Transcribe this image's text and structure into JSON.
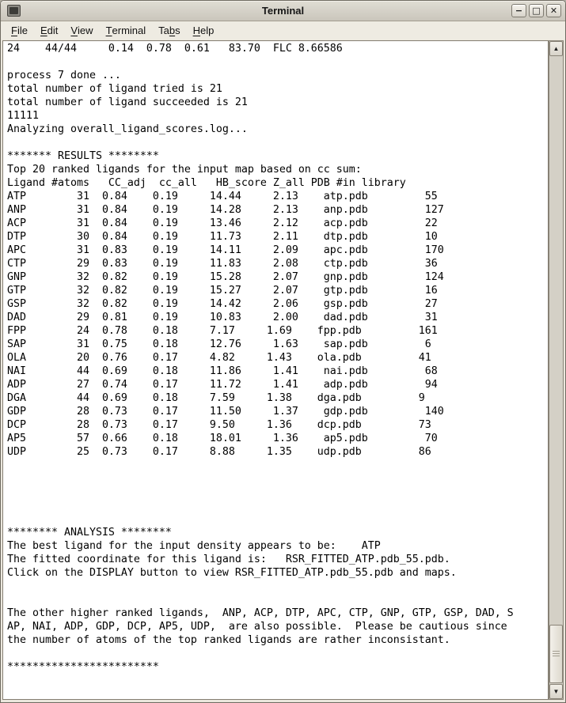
{
  "window": {
    "title": "Terminal"
  },
  "icons": {
    "minimize": "−",
    "maximize": "□",
    "close": "✕",
    "scroll_up": "▲",
    "scroll_down": "▼"
  },
  "menu": {
    "items": [
      {
        "label": "File",
        "mnemonic_index": 0
      },
      {
        "label": "Edit",
        "mnemonic_index": 0
      },
      {
        "label": "View",
        "mnemonic_index": 0
      },
      {
        "label": "Terminal",
        "mnemonic_index": 0
      },
      {
        "label": "Tabs",
        "mnemonic_index": 2
      },
      {
        "label": "Help",
        "mnemonic_index": 0
      }
    ]
  },
  "terminal": {
    "lines": [
      "24    44/44     0.14  0.78  0.61   83.70  FLC 8.66586",
      "",
      "process 7 done ...",
      "total number of ligand tried is 21",
      "total number of ligand succeeded is 21",
      "11111",
      "Analyzing overall_ligand_scores.log...",
      "",
      "******* RESULTS ********",
      "Top 20 ranked ligands for the input map based on cc sum:",
      "Ligand #atoms   CC_adj  cc_all   HB_score Z_all PDB #in library",
      "ATP        31  0.84    0.19     14.44     2.13    atp.pdb         55",
      "ANP        31  0.84    0.19     14.28     2.13    anp.pdb         127",
      "ACP        31  0.84    0.19     13.46     2.12    acp.pdb         22",
      "DTP        30  0.84    0.19     11.73     2.11    dtp.pdb         10",
      "APC        31  0.83    0.19     14.11     2.09    apc.pdb         170",
      "CTP        29  0.83    0.19     11.83     2.08    ctp.pdb         36",
      "GNP        32  0.82    0.19     15.28     2.07    gnp.pdb         124",
      "GTP        32  0.82    0.19     15.27     2.07    gtp.pdb         16",
      "GSP        32  0.82    0.19     14.42     2.06    gsp.pdb         27",
      "DAD        29  0.81    0.19     10.83     2.00    dad.pdb         31",
      "FPP        24  0.78    0.18     7.17     1.69    fpp.pdb         161",
      "SAP        31  0.75    0.18     12.76     1.63    sap.pdb         6",
      "OLA        20  0.76    0.17     4.82     1.43    ola.pdb         41",
      "NAI        44  0.69    0.18     11.86     1.41    nai.pdb         68",
      "ADP        27  0.74    0.17     11.72     1.41    adp.pdb         94",
      "DGA        44  0.69    0.18     7.59     1.38    dga.pdb         9",
      "GDP        28  0.73    0.17     11.50     1.37    gdp.pdb         140",
      "DCP        28  0.73    0.17     9.50     1.36    dcp.pdb         73",
      "AP5        57  0.66    0.18     18.01     1.36    ap5.pdb         70",
      "UDP        25  0.73    0.17     8.88     1.35    udp.pdb         86",
      "",
      "",
      "",
      "",
      "",
      "******** ANALYSIS ********",
      "The best ligand for the input density appears to be:    ATP",
      "The fitted coordinate for this ligand is:   RSR_FITTED_ATP.pdb_55.pdb.",
      "Click on the DISPLAY button to view RSR_FITTED_ATP.pdb_55.pdb and maps.",
      "",
      "",
      "The other higher ranked ligands,  ANP, ACP, DTP, APC, CTP, GNP, GTP, GSP, DAD, S",
      "AP, NAI, ADP, GDP, DCP, AP5, UDP,  are also possible.  Please be cautious since",
      "the number of atoms of the top ranked ligands are rather inconsistant.",
      "",
      "************************"
    ]
  },
  "results_table": {
    "title": "Top 20 ranked ligands for the input map based on cc sum:",
    "columns": [
      "Ligand",
      "#atoms",
      "CC_adj",
      "cc_all",
      "HB_score",
      "Z_all",
      "PDB",
      "#in library"
    ],
    "rows": [
      [
        "ATP",
        31,
        0.84,
        0.19,
        14.44,
        2.13,
        "atp.pdb",
        55
      ],
      [
        "ANP",
        31,
        0.84,
        0.19,
        14.28,
        2.13,
        "anp.pdb",
        127
      ],
      [
        "ACP",
        31,
        0.84,
        0.19,
        13.46,
        2.12,
        "acp.pdb",
        22
      ],
      [
        "DTP",
        30,
        0.84,
        0.19,
        11.73,
        2.11,
        "dtp.pdb",
        10
      ],
      [
        "APC",
        31,
        0.83,
        0.19,
        14.11,
        2.09,
        "apc.pdb",
        170
      ],
      [
        "CTP",
        29,
        0.83,
        0.19,
        11.83,
        2.08,
        "ctp.pdb",
        36
      ],
      [
        "GNP",
        32,
        0.82,
        0.19,
        15.28,
        2.07,
        "gnp.pdb",
        124
      ],
      [
        "GTP",
        32,
        0.82,
        0.19,
        15.27,
        2.07,
        "gtp.pdb",
        16
      ],
      [
        "GSP",
        32,
        0.82,
        0.19,
        14.42,
        2.06,
        "gsp.pdb",
        27
      ],
      [
        "DAD",
        29,
        0.81,
        0.19,
        10.83,
        2.0,
        "dad.pdb",
        31
      ],
      [
        "FPP",
        24,
        0.78,
        0.18,
        7.17,
        1.69,
        "fpp.pdb",
        161
      ],
      [
        "SAP",
        31,
        0.75,
        0.18,
        12.76,
        1.63,
        "sap.pdb",
        6
      ],
      [
        "OLA",
        20,
        0.76,
        0.17,
        4.82,
        1.43,
        "ola.pdb",
        41
      ],
      [
        "NAI",
        44,
        0.69,
        0.18,
        11.86,
        1.41,
        "nai.pdb",
        68
      ],
      [
        "ADP",
        27,
        0.74,
        0.17,
        11.72,
        1.41,
        "adp.pdb",
        94
      ],
      [
        "DGA",
        44,
        0.69,
        0.18,
        7.59,
        1.38,
        "dga.pdb",
        9
      ],
      [
        "GDP",
        28,
        0.73,
        0.17,
        11.5,
        1.37,
        "gdp.pdb",
        140
      ],
      [
        "DCP",
        28,
        0.73,
        0.17,
        9.5,
        1.36,
        "dcp.pdb",
        73
      ],
      [
        "AP5",
        57,
        0.66,
        0.18,
        18.01,
        1.36,
        "ap5.pdb",
        70
      ],
      [
        "UDP",
        25,
        0.73,
        0.17,
        8.88,
        1.35,
        "udp.pdb",
        86
      ]
    ]
  },
  "analysis": {
    "best_ligand": "ATP",
    "fitted_coordinate": "RSR_FITTED_ATP.pdb_55.pdb.",
    "note": "Click on the DISPLAY button to view RSR_FITTED_ATP.pdb_55.pdb and maps."
  },
  "colors": {
    "titlebar_bg": "#d4d0c7",
    "menu_bg": "#eeebe2",
    "terminal_bg": "#ffffff",
    "terminal_fg": "#000000",
    "scrollbar_trough": "#d4d0c6",
    "scrollbar_thumb": "#e9e6dd"
  }
}
